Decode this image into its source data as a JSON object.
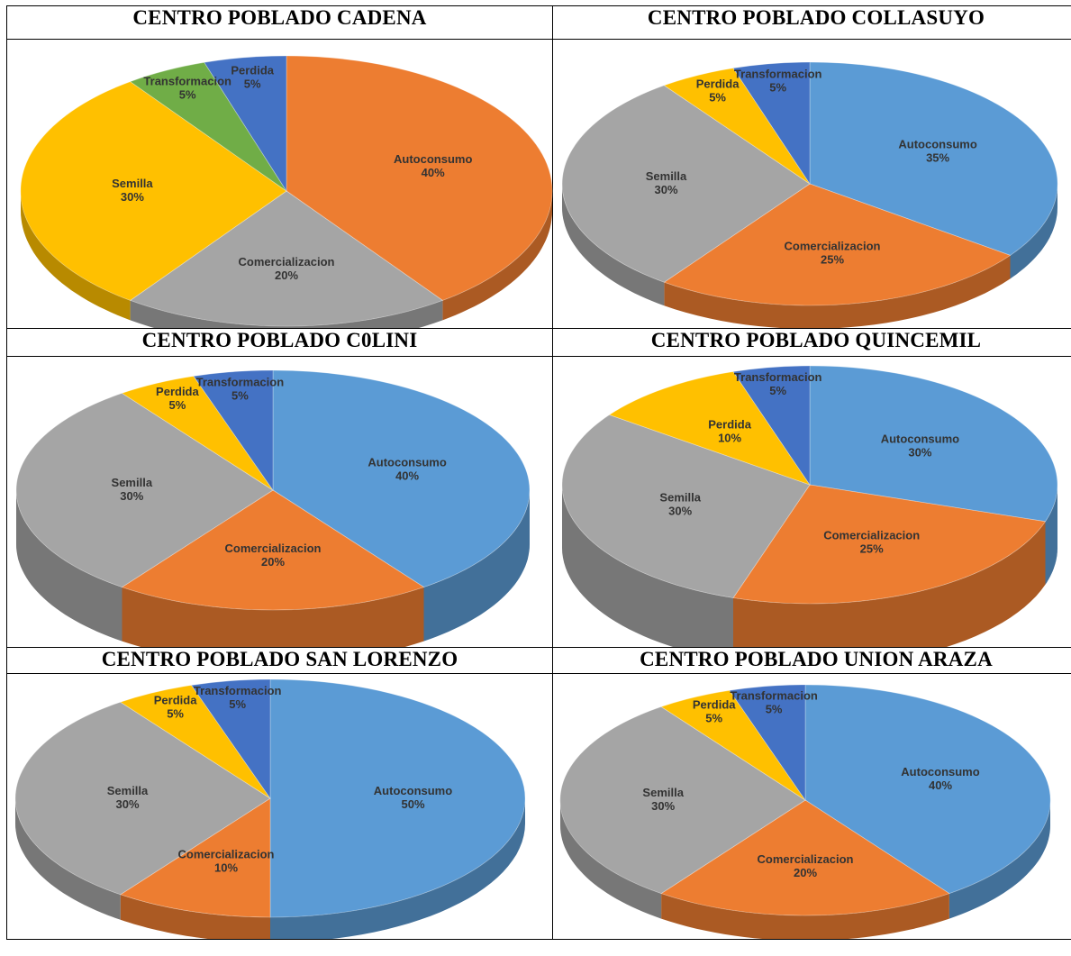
{
  "charts": [
    {
      "title": "CENTRO POBLADO CADENA",
      "chart_data": {
        "type": "pie",
        "categories": [
          "Autoconsumo",
          "Comercializacion",
          "Semilla",
          "Transformacion",
          "Perdida"
        ],
        "values": [
          40,
          20,
          30,
          5,
          5
        ],
        "labels": [
          "40%",
          "20%",
          "30%",
          "5%",
          "5%"
        ],
        "colors": [
          "#ED7D31",
          "#A5A5A5",
          "#FFC000",
          "#70AD47",
          "#4472C4"
        ],
        "label_color": "#333333"
      }
    },
    {
      "title": "CENTRO POBLADO COLLASUYO",
      "chart_data": {
        "type": "pie",
        "categories": [
          "Autoconsumo",
          "Comercializacion",
          "Semilla",
          "Perdida",
          "Transformacion"
        ],
        "values": [
          35,
          25,
          30,
          5,
          5
        ],
        "labels": [
          "35%",
          "25%",
          "30%",
          "5%",
          "5%"
        ],
        "colors": [
          "#5B9BD5",
          "#ED7D31",
          "#A5A5A5",
          "#FFC000",
          "#4472C4"
        ],
        "label_color": "#333333"
      }
    },
    {
      "title": "CENTRO POBLADO C0LINI",
      "chart_data": {
        "type": "pie",
        "categories": [
          "Autoconsumo",
          "Comercializacion",
          "Semilla",
          "Perdida",
          "Transformacion"
        ],
        "values": [
          40,
          20,
          30,
          5,
          5
        ],
        "labels": [
          "40%",
          "20%",
          "30%",
          "5%",
          "5%"
        ],
        "colors": [
          "#5B9BD5",
          "#ED7D31",
          "#A5A5A5",
          "#FFC000",
          "#4472C4"
        ],
        "label_color": "#333333"
      }
    },
    {
      "title": "CENTRO POBLADO QUINCEMIL",
      "chart_data": {
        "type": "pie",
        "categories": [
          "Autoconsumo",
          "Comercializacion",
          "Semilla",
          "Perdida",
          "Transformacion"
        ],
        "values": [
          30,
          25,
          30,
          10,
          5
        ],
        "labels": [
          "30%",
          "25%",
          "30%",
          "10%",
          "5%"
        ],
        "colors": [
          "#5B9BD5",
          "#ED7D31",
          "#A5A5A5",
          "#FFC000",
          "#4472C4"
        ],
        "label_color": "#333333"
      }
    },
    {
      "title": "CENTRO POBLADO SAN LORENZO",
      "chart_data": {
        "type": "pie",
        "categories": [
          "Autoconsumo",
          "Comercializacion",
          "Semilla",
          "Perdida",
          "Transformacion"
        ],
        "values": [
          50,
          10,
          30,
          5,
          5
        ],
        "labels": [
          "50%",
          "10%",
          "30%",
          "5%",
          "5%"
        ],
        "colors": [
          "#5B9BD5",
          "#ED7D31",
          "#A5A5A5",
          "#FFC000",
          "#4472C4"
        ],
        "label_color": "#333333"
      }
    },
    {
      "title": "CENTRO POBLADO UNION ARAZA",
      "chart_data": {
        "type": "pie",
        "categories": [
          "Autoconsumo",
          "Comercializacion",
          "Semilla",
          "Perdida",
          "Transformacion"
        ],
        "values": [
          40,
          20,
          30,
          5,
          5
        ],
        "labels": [
          "40%",
          "20%",
          "30%",
          "5%",
          "5%"
        ],
        "colors": [
          "#5B9BD5",
          "#ED7D31",
          "#A5A5A5",
          "#FFC000",
          "#4472C4"
        ],
        "label_color": "#333333"
      }
    }
  ]
}
